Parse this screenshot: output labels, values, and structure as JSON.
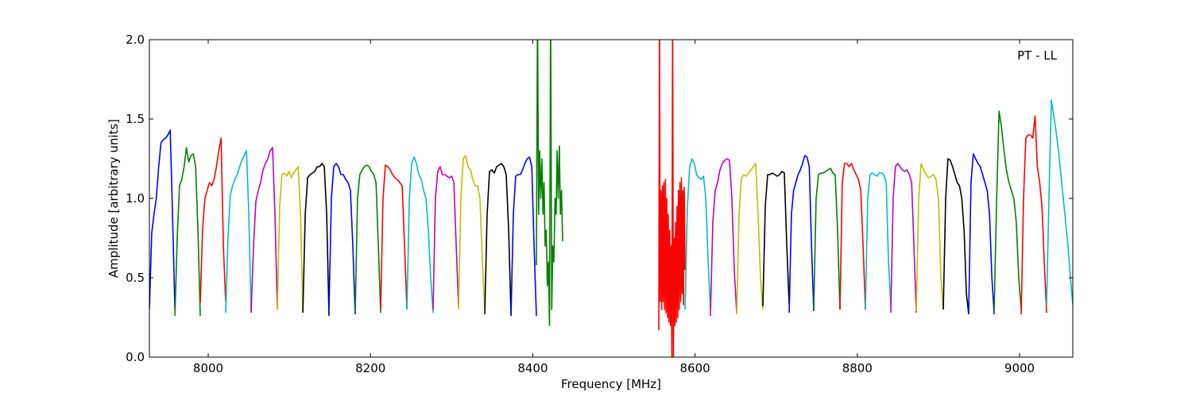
{
  "chart_data": {
    "type": "line",
    "title": "",
    "xlabel": "Frequency [MHz]",
    "ylabel": "Amplitude [arbitrary units]",
    "annotation": "PT - LL",
    "xlim": [
      7927.5,
      9065.6
    ],
    "ylim": [
      0.0,
      2.0
    ],
    "grid": false,
    "xticks": [
      8000,
      8200,
      8400,
      8600,
      8800,
      9000
    ],
    "xtick_labels": [
      "8000",
      "8200",
      "8400",
      "8600",
      "8800",
      "9000"
    ],
    "yticks": [
      0.0,
      0.5,
      1.0,
      1.5,
      2.0
    ],
    "ytick_labels": [
      "0.0",
      "0.5",
      "1.0",
      "1.5",
      "2.0"
    ],
    "colors": {
      "b": "#0000ff",
      "g": "#008000",
      "r": "#ff0000",
      "c": "#00bfbf",
      "m": "#bf00bf",
      "y": "#bfbf00",
      "k": "#000000"
    },
    "series": [
      {
        "color": "b",
        "f_start": 7927.5,
        "f_end": 7958.9,
        "amps": [
          0.3,
          0.78,
          0.9,
          1.0,
          1.2,
          1.35,
          1.37,
          1.38,
          1.4,
          1.43,
          0.9,
          0.3
        ]
      },
      {
        "color": "g",
        "f_start": 7958.9,
        "f_end": 7990.2,
        "amps": [
          0.26,
          0.75,
          1.08,
          1.12,
          1.2,
          1.32,
          1.23,
          1.27,
          1.28,
          1.2,
          0.8,
          0.26
        ]
      },
      {
        "color": "r",
        "f_start": 7990.2,
        "f_end": 8021.5,
        "amps": [
          0.34,
          0.8,
          1.0,
          1.05,
          1.1,
          1.08,
          1.12,
          1.2,
          1.3,
          1.38,
          0.7,
          0.35
        ]
      },
      {
        "color": "c",
        "f_start": 8021.5,
        "f_end": 8052.9,
        "amps": [
          0.28,
          0.75,
          1.02,
          1.08,
          1.12,
          1.15,
          1.2,
          1.24,
          1.27,
          1.3,
          0.9,
          0.28
        ]
      },
      {
        "color": "m",
        "f_start": 8052.9,
        "f_end": 8085.2,
        "amps": [
          0.28,
          0.7,
          0.98,
          1.05,
          1.1,
          1.18,
          1.22,
          1.25,
          1.3,
          1.32,
          0.9,
          0.3
        ]
      },
      {
        "color": "y",
        "f_start": 8085.2,
        "f_end": 8116.6,
        "amps": [
          0.3,
          0.95,
          1.15,
          1.16,
          1.14,
          1.17,
          1.13,
          1.16,
          1.18,
          1.2,
          0.9,
          0.28
        ]
      },
      {
        "color": "k",
        "f_start": 8116.6,
        "f_end": 8148.9,
        "amps": [
          0.28,
          0.9,
          1.13,
          1.15,
          1.16,
          1.17,
          1.2,
          1.2,
          1.22,
          1.2,
          0.9,
          0.26
        ]
      },
      {
        "color": "b",
        "f_start": 8148.9,
        "f_end": 8181.2,
        "amps": [
          0.3,
          1.0,
          1.2,
          1.22,
          1.2,
          1.15,
          1.15,
          1.12,
          1.1,
          1.05,
          0.7,
          0.27
        ]
      },
      {
        "color": "g",
        "f_start": 8181.2,
        "f_end": 8212.5,
        "amps": [
          0.28,
          1.0,
          1.15,
          1.18,
          1.2,
          1.21,
          1.2,
          1.17,
          1.15,
          1.1,
          0.7,
          0.28
        ]
      },
      {
        "color": "r",
        "f_start": 8212.5,
        "f_end": 8244.9,
        "amps": [
          0.3,
          1.0,
          1.21,
          1.2,
          1.18,
          1.15,
          1.13,
          1.12,
          1.1,
          1.08,
          0.7,
          0.3
        ]
      },
      {
        "color": "c",
        "f_start": 8244.9,
        "f_end": 8277.2,
        "amps": [
          0.3,
          1.0,
          1.22,
          1.26,
          1.22,
          1.15,
          1.12,
          1.05,
          1.0,
          0.8,
          0.5,
          0.28
        ]
      },
      {
        "color": "m",
        "f_start": 8277.2,
        "f_end": 8308.5,
        "amps": [
          0.3,
          1.0,
          1.17,
          1.2,
          1.15,
          1.15,
          1.14,
          1.13,
          1.14,
          1.1,
          0.7,
          0.32
        ]
      },
      {
        "color": "y",
        "f_start": 8308.5,
        "f_end": 8340.8,
        "amps": [
          0.3,
          1.0,
          1.25,
          1.27,
          1.2,
          1.18,
          1.12,
          1.08,
          1.08,
          1.0,
          0.6,
          0.3
        ]
      },
      {
        "color": "k",
        "f_start": 8340.8,
        "f_end": 8373.2,
        "amps": [
          0.27,
          0.9,
          1.17,
          1.18,
          1.16,
          1.2,
          1.21,
          1.22,
          1.2,
          1.15,
          0.8,
          0.26
        ]
      },
      {
        "color": "b",
        "f_start": 8373.2,
        "f_end": 8404.5,
        "amps": [
          0.27,
          0.9,
          1.14,
          1.15,
          1.15,
          1.18,
          1.22,
          1.25,
          1.26,
          1.2,
          0.7,
          0.26
        ]
      },
      {
        "color": "g",
        "f_start": 8404.5,
        "f_end": 8436.8,
        "amps": [
          0.58,
          2.2,
          0.9,
          1.3,
          1.0,
          1.25,
          0.9,
          1.1,
          0.7,
          0.8,
          0.45,
          0.6,
          0.2,
          2.2,
          0.3,
          0.7,
          0.6,
          1.0,
          0.9,
          1.3,
          1.0,
          1.33,
          0.9,
          1.05,
          0.73
        ]
      },
      {
        "color": "r",
        "f_start": 8555.3,
        "f_end": 8587.7,
        "amps": [
          0.17,
          2.2,
          0.35,
          1.05,
          0.3,
          1.08,
          0.35,
          1.1,
          0.3,
          1.12,
          0.28,
          1.0,
          0.25,
          0.9,
          0.22,
          0.8,
          0.2,
          0.7,
          0.0,
          2.2,
          0.0,
          0.75,
          0.2,
          0.85,
          0.22,
          0.95,
          0.25,
          1.05,
          0.3,
          1.1,
          0.35,
          1.13,
          0.4,
          1.05,
          0.33,
          1.07,
          0.55
        ]
      },
      {
        "color": "c",
        "f_start": 8587.7,
        "f_end": 8619.0,
        "amps": [
          0.3,
          0.95,
          1.2,
          1.25,
          1.22,
          1.15,
          1.13,
          1.12,
          1.14,
          1.0,
          0.6,
          0.3
        ]
      },
      {
        "color": "m",
        "f_start": 8619.0,
        "f_end": 8651.3,
        "amps": [
          0.26,
          0.85,
          1.05,
          1.1,
          1.18,
          1.22,
          1.24,
          1.25,
          1.24,
          1.0,
          0.55,
          0.28
        ]
      },
      {
        "color": "y",
        "f_start": 8651.3,
        "f_end": 8683.6,
        "amps": [
          0.27,
          0.9,
          1.13,
          1.15,
          1.14,
          1.16,
          1.18,
          1.2,
          1.22,
          0.9,
          0.5,
          0.3
        ]
      },
      {
        "color": "k",
        "f_start": 8683.6,
        "f_end": 8716.0,
        "amps": [
          0.32,
          0.95,
          1.15,
          1.15,
          1.16,
          1.15,
          1.14,
          1.15,
          1.17,
          1.16,
          0.7,
          0.33
        ]
      },
      {
        "color": "b",
        "f_start": 8716.0,
        "f_end": 8746.3,
        "amps": [
          0.28,
          0.9,
          1.05,
          1.1,
          1.15,
          1.18,
          1.22,
          1.27,
          1.26,
          1.2,
          0.7,
          0.29
        ]
      },
      {
        "color": "g",
        "f_start": 8746.3,
        "f_end": 8778.6,
        "amps": [
          0.3,
          1.0,
          1.15,
          1.16,
          1.16,
          1.17,
          1.18,
          1.19,
          1.16,
          1.15,
          0.8,
          0.3
        ]
      },
      {
        "color": "r",
        "f_start": 8778.6,
        "f_end": 8810.0,
        "amps": [
          0.3,
          1.1,
          1.22,
          1.22,
          1.2,
          1.22,
          1.18,
          1.15,
          1.12,
          1.05,
          0.7,
          0.3
        ]
      },
      {
        "color": "c",
        "f_start": 8810.0,
        "f_end": 8841.3,
        "amps": [
          0.3,
          1.0,
          1.15,
          1.16,
          1.15,
          1.14,
          1.16,
          1.16,
          1.15,
          1.1,
          0.6,
          0.32
        ]
      },
      {
        "color": "m",
        "f_start": 8841.3,
        "f_end": 8872.7,
        "amps": [
          0.28,
          1.0,
          1.2,
          1.22,
          1.2,
          1.18,
          1.17,
          1.18,
          1.15,
          1.1,
          0.7,
          0.28
        ]
      },
      {
        "color": "y",
        "f_start": 8872.7,
        "f_end": 8906.0,
        "amps": [
          0.29,
          1.0,
          1.22,
          1.18,
          1.15,
          1.13,
          1.14,
          1.15,
          1.12,
          1.0,
          0.5,
          0.3
        ]
      },
      {
        "color": "k",
        "f_start": 8906.0,
        "f_end": 8937.3,
        "amps": [
          0.3,
          1.0,
          1.25,
          1.24,
          1.2,
          1.15,
          1.1,
          1.08,
          1.0,
          0.8,
          0.4,
          0.27
        ]
      },
      {
        "color": "b",
        "f_start": 8937.3,
        "f_end": 8968.7,
        "amps": [
          0.28,
          1.1,
          1.28,
          1.25,
          1.22,
          1.2,
          1.15,
          1.1,
          1.05,
          0.9,
          0.5,
          0.27
        ]
      },
      {
        "color": "g",
        "f_start": 8968.7,
        "f_end": 9002.0,
        "amps": [
          0.3,
          1.0,
          1.55,
          1.45,
          1.3,
          1.18,
          1.1,
          1.05,
          1.0,
          0.85,
          0.5,
          0.3
        ]
      },
      {
        "color": "r",
        "f_start": 9002.0,
        "f_end": 9033.3,
        "amps": [
          0.27,
          1.0,
          1.38,
          1.4,
          1.4,
          1.38,
          1.52,
          1.2,
          1.1,
          0.95,
          0.6,
          0.28
        ]
      },
      {
        "color": "c",
        "f_start": 9033.3,
        "f_end": 9065.6,
        "amps": [
          0.33,
          1.0,
          1.62,
          1.52,
          1.42,
          1.3,
          1.15,
          1.0,
          0.85,
          0.7,
          0.5,
          0.33
        ]
      }
    ]
  }
}
